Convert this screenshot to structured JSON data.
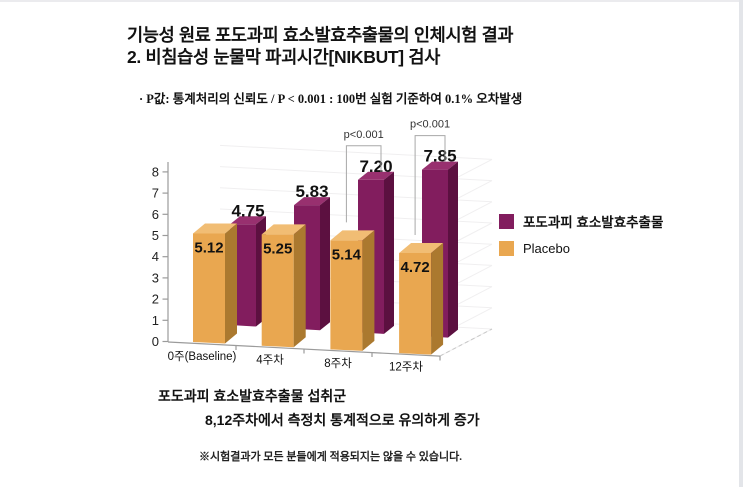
{
  "page": {
    "title_line1": "기능성 원료 포도과피 효소발효추출물의 인체시험 결과",
    "title_line2": "2. 비침습성 눈물막 파괴시간[NIKBUT] 검사",
    "note": "· P값: 통계처리의 신뢰도 / P < 0.001 : 100번 실험 기준하여 0.1% 오차발생",
    "caption_line1": "포도과피 효소발효추출물 섭취군",
    "caption_line2": "8,12주차에서 측정치 통계적으로 유의하게 증가",
    "disclaimer": "※시험결과가 모든 분들에게 적용되지는 않을 수 있습니다."
  },
  "chart_data": {
    "type": "bar",
    "style": "3d-clustered-column",
    "categories": [
      "0주(Baseline)",
      "4주차",
      "8주차",
      "12주차"
    ],
    "series": [
      {
        "name": "Placebo",
        "values": [
          5.12,
          5.25,
          5.14,
          4.72
        ],
        "color": "#e9a750",
        "color_top": "#f1bd74",
        "color_side": "#ab792f"
      },
      {
        "name": "포도과피 효소발효추출물",
        "values": [
          4.75,
          5.83,
          7.2,
          7.85
        ],
        "color": "#821d5e",
        "color_top": "#98306f",
        "color_side": "#5c1040"
      }
    ],
    "annotations": [
      {
        "text": "p<0.001",
        "category_index": 2
      },
      {
        "text": "p<0.001",
        "category_index": 3
      }
    ],
    "ylim": [
      0,
      8
    ],
    "yticks": [
      0,
      1,
      2,
      3,
      4,
      5,
      6,
      7,
      8
    ],
    "value_label_format": "2-decimals",
    "legend_position": "right",
    "grid": true
  }
}
